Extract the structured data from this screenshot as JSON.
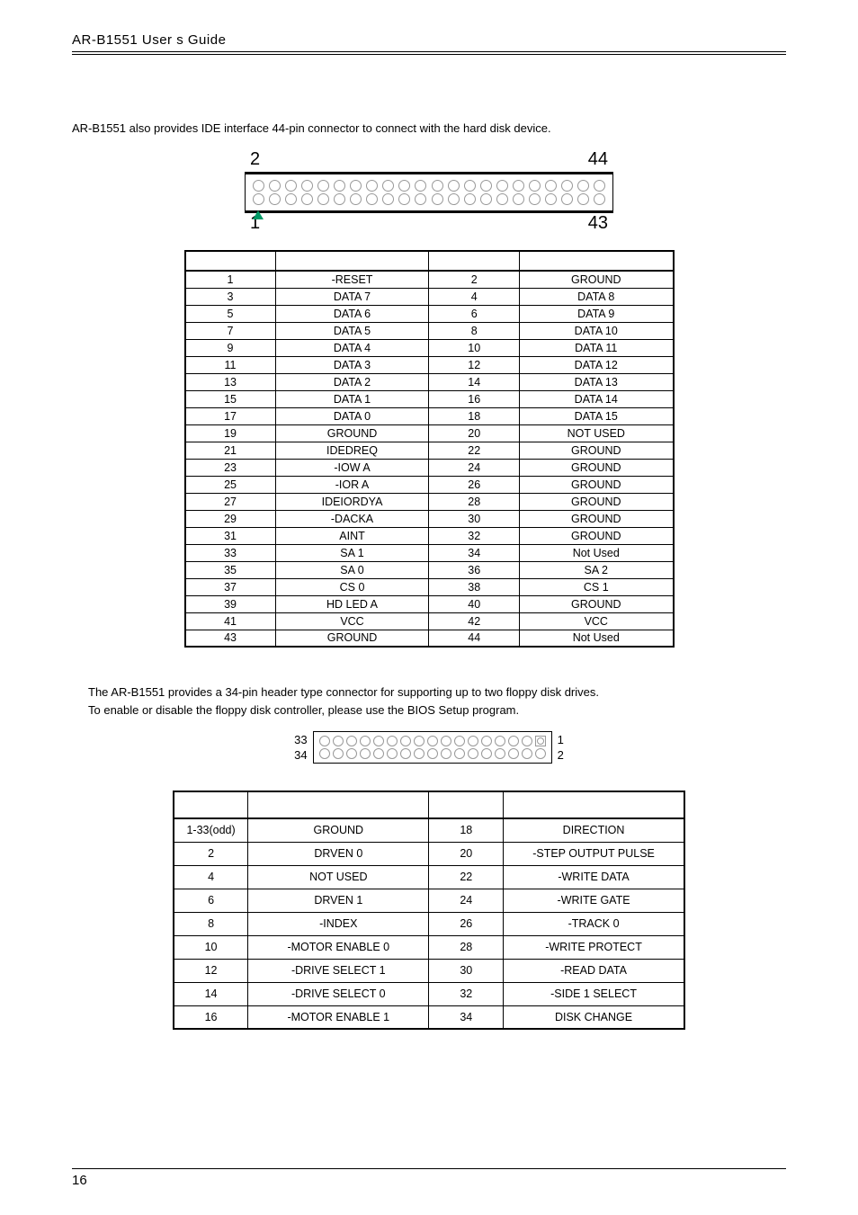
{
  "header": {
    "title": "AR-B1551 User   s Guide"
  },
  "intro44": "AR-B1551 also provides IDE interface 44-pin connector to connect with the hard disk device.",
  "conn44": {
    "top_left": "2",
    "top_right": "44",
    "bot_left": "1",
    "bot_right": "43",
    "pins_per_row": 22,
    "pin_border_color": "#999999",
    "triangle_color": "#009966"
  },
  "table44": {
    "headers": [
      "",
      "",
      "",
      ""
    ],
    "rows": [
      [
        "1",
        "-RESET",
        "2",
        "GROUND"
      ],
      [
        "3",
        "DATA 7",
        "4",
        "DATA 8"
      ],
      [
        "5",
        "DATA 6",
        "6",
        "DATA 9"
      ],
      [
        "7",
        "DATA 5",
        "8",
        "DATA 10"
      ],
      [
        "9",
        "DATA 4",
        "10",
        "DATA 11"
      ],
      [
        "11",
        "DATA 3",
        "12",
        "DATA 12"
      ],
      [
        "13",
        "DATA 2",
        "14",
        "DATA 13"
      ],
      [
        "15",
        "DATA 1",
        "16",
        "DATA 14"
      ],
      [
        "17",
        "DATA 0",
        "18",
        "DATA 15"
      ],
      [
        "19",
        "GROUND",
        "20",
        "NOT USED"
      ],
      [
        "21",
        "IDEDREQ",
        "22",
        "GROUND"
      ],
      [
        "23",
        "-IOW A",
        "24",
        "GROUND"
      ],
      [
        "25",
        "-IOR A",
        "26",
        "GROUND"
      ],
      [
        "27",
        "IDEIORDYA",
        "28",
        "GROUND"
      ],
      [
        "29",
        "-DACKA",
        "30",
        "GROUND"
      ],
      [
        "31",
        "AINT",
        "32",
        "GROUND"
      ],
      [
        "33",
        "SA 1",
        "34",
        "Not Used"
      ],
      [
        "35",
        "SA 0",
        "36",
        "SA 2"
      ],
      [
        "37",
        "CS 0",
        "38",
        "CS 1"
      ],
      [
        "39",
        "HD LED A",
        "40",
        "GROUND"
      ],
      [
        "41",
        "VCC",
        "42",
        "VCC"
      ],
      [
        "43",
        "GROUND",
        "44",
        "Not Used"
      ]
    ]
  },
  "intro34_line1": "The AR-B1551 provides a 34-pin header type connector for supporting up to two floppy disk drives.",
  "intro34_line2": "To enable or disable the floppy disk controller, please use the BIOS Setup program.",
  "conn34": {
    "left_top": "33",
    "left_bot": "34",
    "right_top": "1",
    "right_bot": "2",
    "pins_per_row": 17
  },
  "table34": {
    "headers": [
      "",
      "",
      "",
      ""
    ],
    "rows": [
      [
        "1-33(odd)",
        "GROUND",
        "18",
        "DIRECTION"
      ],
      [
        "2",
        "DRVEN 0",
        "20",
        "-STEP OUTPUT PULSE"
      ],
      [
        "4",
        "NOT USED",
        "22",
        "-WRITE DATA"
      ],
      [
        "6",
        "DRVEN 1",
        "24",
        "-WRITE GATE"
      ],
      [
        "8",
        "-INDEX",
        "26",
        "-TRACK 0"
      ],
      [
        "10",
        "-MOTOR ENABLE 0",
        "28",
        "-WRITE PROTECT"
      ],
      [
        "12",
        "-DRIVE SELECT 1",
        "30",
        "-READ DATA"
      ],
      [
        "14",
        "-DRIVE SELECT 0",
        "32",
        "-SIDE 1 SELECT"
      ],
      [
        "16",
        "-MOTOR ENABLE 1",
        "34",
        "DISK CHANGE"
      ]
    ]
  },
  "footer": {
    "page": "16"
  }
}
